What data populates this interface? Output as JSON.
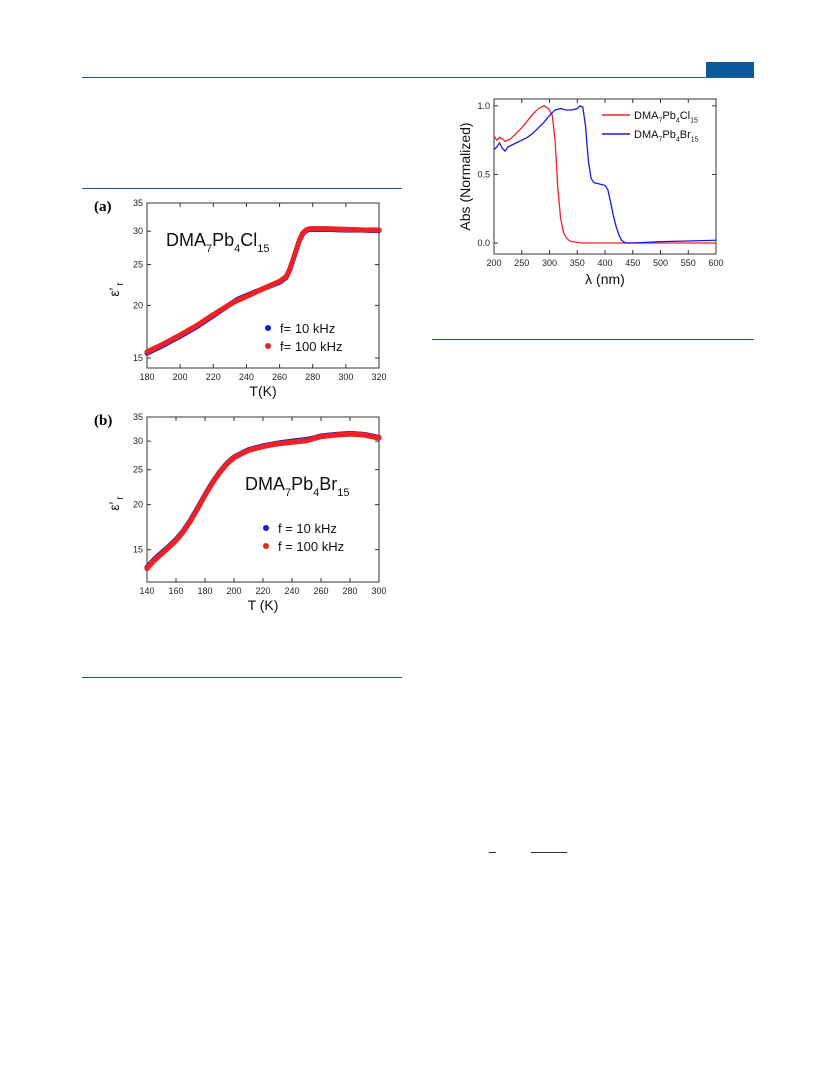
{
  "colors": {
    "rule": "#1f5f99",
    "tab": "#0a5a9c",
    "blue": "#1a1adf",
    "red": "#ee2222"
  },
  "chart_data": [
    {
      "panel_label": "(a)",
      "type": "scatter",
      "annotation": {
        "base": "DMA",
        "sub1": "7",
        "mid": "Pb",
        "sub2": "4",
        "end": "Cl",
        "sub3": "15"
      },
      "xlabel": "T(K)",
      "ylabel_main": "ε",
      "ylabel_prime": "′",
      "ylabel_sub": "r",
      "xlim": [
        180,
        320
      ],
      "xticks": [
        180,
        200,
        220,
        240,
        260,
        280,
        300,
        320
      ],
      "ylim": [
        14.2,
        35
      ],
      "yscale": "log",
      "yticks": [
        15,
        20,
        25,
        30,
        35
      ],
      "legend": [
        "f= 10 kHz",
        "f= 100 kHz"
      ],
      "series": [
        {
          "name": "f= 10 kHz",
          "color": "#1a1adf",
          "x": [
            180,
            190,
            200,
            210,
            220,
            230,
            235,
            240,
            250,
            260,
            264,
            266,
            268,
            270,
            272,
            274,
            276,
            278,
            280,
            290,
            300,
            310,
            320
          ],
          "y": [
            15.4,
            16.1,
            16.9,
            17.8,
            18.9,
            20.1,
            20.7,
            21.1,
            21.9,
            22.7,
            23.3,
            24.2,
            25.5,
            27.0,
            28.5,
            29.6,
            30.1,
            30.3,
            30.3,
            30.3,
            30.2,
            30.2,
            30.1
          ]
        },
        {
          "name": "f= 100 kHz",
          "color": "#ee2222",
          "x": [
            180,
            190,
            200,
            210,
            220,
            230,
            235,
            240,
            250,
            260,
            264,
            266,
            268,
            270,
            272,
            274,
            276,
            278,
            280,
            290,
            300,
            310,
            320
          ],
          "y": [
            15.5,
            16.2,
            17.0,
            17.9,
            19.0,
            20.1,
            20.6,
            21.0,
            21.9,
            22.8,
            23.4,
            24.3,
            25.6,
            27.1,
            28.6,
            29.7,
            30.2,
            30.4,
            30.4,
            30.4,
            30.3,
            30.2,
            30.2
          ]
        }
      ]
    },
    {
      "panel_label": "(b)",
      "type": "scatter",
      "annotation": {
        "base": "DMA",
        "sub1": "7",
        "mid": "Pb",
        "sub2": "4",
        "end": "Br",
        "sub3": "15"
      },
      "xlabel": "T (K)",
      "ylabel_main": "ε",
      "ylabel_prime": "′",
      "ylabel_sub": "r",
      "xlim": [
        140,
        300
      ],
      "xticks": [
        140,
        160,
        180,
        200,
        220,
        240,
        260,
        280,
        300
      ],
      "ylim": [
        12.2,
        35
      ],
      "yscale": "log",
      "yticks": [
        15,
        20,
        25,
        30,
        35
      ],
      "legend": [
        "f = 10 kHz",
        "f = 100 kHz"
      ],
      "series": [
        {
          "name": "f = 10 kHz",
          "color": "#1a1adf",
          "x": [
            140,
            145,
            150,
            155,
            160,
            165,
            170,
            175,
            180,
            185,
            190,
            195,
            200,
            210,
            220,
            230,
            240,
            250,
            255,
            260,
            270,
            280,
            290,
            300
          ],
          "y": [
            13.4,
            14.1,
            14.7,
            15.3,
            16.0,
            16.9,
            18.1,
            19.6,
            21.3,
            23.0,
            24.6,
            26.0,
            27.1,
            28.4,
            29.1,
            29.6,
            30.0,
            30.3,
            30.6,
            31.0,
            31.3,
            31.5,
            31.3,
            30.7
          ]
        },
        {
          "name": "f = 100 kHz",
          "color": "#ee2222",
          "x": [
            140,
            145,
            150,
            155,
            160,
            165,
            170,
            175,
            180,
            185,
            190,
            195,
            200,
            210,
            220,
            230,
            240,
            250,
            255,
            260,
            270,
            280,
            290,
            300
          ],
          "y": [
            13.3,
            14.0,
            14.6,
            15.2,
            15.9,
            16.8,
            18.0,
            19.5,
            21.2,
            22.9,
            24.5,
            25.9,
            27.0,
            28.3,
            29.0,
            29.5,
            29.8,
            30.1,
            30.5,
            30.9,
            31.2,
            31.4,
            31.2,
            30.6
          ]
        }
      ]
    },
    {
      "type": "line",
      "xlabel": "λ (nm)",
      "ylabel": "Abs (Normalized)",
      "xlim": [
        200,
        600
      ],
      "xticks": [
        200,
        250,
        300,
        350,
        400,
        450,
        500,
        550,
        600
      ],
      "ylim": [
        -0.08,
        1.05
      ],
      "yticks": [
        0.0,
        0.5,
        1.0
      ],
      "ytick_labels": [
        "0.0",
        "0.5",
        "1.0"
      ],
      "legend": [
        {
          "base": "DMA",
          "sub1": "7",
          "mid": "Pb",
          "sub2": "4",
          "end": "Cl",
          "sub3": "15",
          "color": "#ee2222"
        },
        {
          "base": "DMA",
          "sub1": "7",
          "mid": "Pb",
          "sub2": "4",
          "end": "Br",
          "sub3": "15",
          "color": "#1a1adf"
        }
      ],
      "series": [
        {
          "name": "DMA7Pb4Cl15",
          "color": "#ee2222",
          "x": [
            200,
            205,
            210,
            215,
            220,
            230,
            240,
            250,
            260,
            270,
            280,
            290,
            295,
            300,
            305,
            310,
            315,
            320,
            325,
            330,
            335,
            340,
            350,
            360,
            380,
            400,
            450,
            500,
            550,
            600
          ],
          "y": [
            0.78,
            0.75,
            0.77,
            0.76,
            0.74,
            0.76,
            0.8,
            0.84,
            0.89,
            0.94,
            0.98,
            1.0,
            0.99,
            0.97,
            0.93,
            0.75,
            0.4,
            0.18,
            0.08,
            0.04,
            0.02,
            0.01,
            0.005,
            0.0,
            0.0,
            0.0,
            0.0,
            0.0,
            0.0,
            0.0
          ]
        },
        {
          "name": "DMA7Pb4Br15",
          "color": "#1a1adf",
          "x": [
            200,
            205,
            210,
            215,
            220,
            225,
            230,
            240,
            250,
            260,
            270,
            280,
            290,
            300,
            310,
            320,
            330,
            340,
            350,
            355,
            360,
            365,
            370,
            375,
            380,
            390,
            400,
            405,
            410,
            415,
            420,
            425,
            430,
            435,
            440,
            450,
            500,
            550,
            600
          ],
          "y": [
            0.68,
            0.7,
            0.73,
            0.69,
            0.67,
            0.7,
            0.71,
            0.73,
            0.75,
            0.77,
            0.8,
            0.84,
            0.88,
            0.93,
            0.97,
            0.98,
            0.97,
            0.97,
            0.98,
            1.0,
            0.99,
            0.85,
            0.6,
            0.47,
            0.44,
            0.43,
            0.42,
            0.39,
            0.3,
            0.2,
            0.12,
            0.06,
            0.02,
            0.005,
            0.0,
            0.0,
            0.01,
            0.015,
            0.02
          ]
        }
      ]
    }
  ]
}
